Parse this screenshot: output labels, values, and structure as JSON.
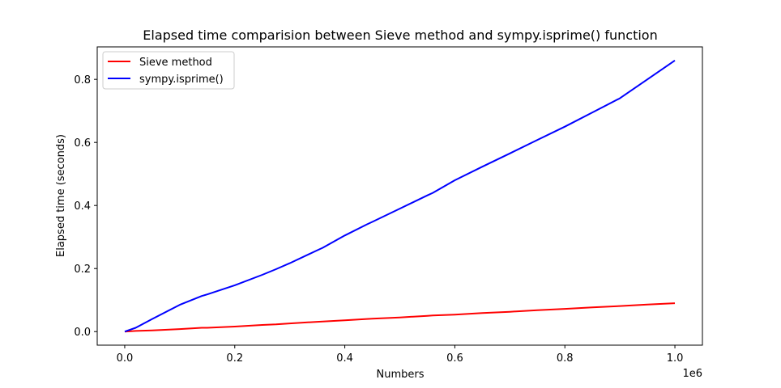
{
  "chart_data": {
    "type": "line",
    "title": "Elapsed time comparision between Sieve method and sympy.isprime() function",
    "xlabel": "Numbers",
    "ylabel": "Elapsed time (seconds)",
    "x_offset_label": "1e6",
    "xlim": [
      -50000,
      1050000
    ],
    "ylim": [
      -0.043,
      0.903
    ],
    "x_ticks": [
      0,
      200000,
      400000,
      600000,
      800000,
      1000000
    ],
    "x_tick_labels": [
      "0.0",
      "0.2",
      "0.4",
      "0.6",
      "0.8",
      "1.0"
    ],
    "y_ticks": [
      0.0,
      0.2,
      0.4,
      0.6,
      0.8
    ],
    "y_tick_labels": [
      "0.0",
      "0.2",
      "0.4",
      "0.6",
      "0.8"
    ],
    "grid": false,
    "legend_position": "top-left",
    "x": [
      0,
      20000,
      50000,
      100000,
      140000,
      150000,
      200000,
      250000,
      275000,
      300000,
      350000,
      360000,
      400000,
      440000,
      450000,
      500000,
      550000,
      560000,
      600000,
      650000,
      700000,
      750000,
      800000,
      850000,
      900000,
      950000,
      1000000
    ],
    "series": [
      {
        "name": "Sieve method",
        "color": "#ff0000",
        "values": [
          0.0,
          0.002,
          0.004,
          0.008,
          0.012,
          0.012,
          0.016,
          0.021,
          0.023,
          0.026,
          0.031,
          0.032,
          0.036,
          0.04,
          0.041,
          0.045,
          0.05,
          0.051,
          0.054,
          0.059,
          0.063,
          0.068,
          0.072,
          0.077,
          0.081,
          0.086,
          0.09
        ]
      },
      {
        "name": "sympy.isprime()",
        "color": "#0000ff",
        "values": [
          0.0,
          0.012,
          0.04,
          0.085,
          0.113,
          0.118,
          0.147,
          0.18,
          0.198,
          0.217,
          0.258,
          0.266,
          0.305,
          0.34,
          0.348,
          0.39,
          0.432,
          0.44,
          0.48,
          0.523,
          0.565,
          0.608,
          0.65,
          0.695,
          0.74,
          0.8,
          0.86
        ]
      }
    ]
  }
}
